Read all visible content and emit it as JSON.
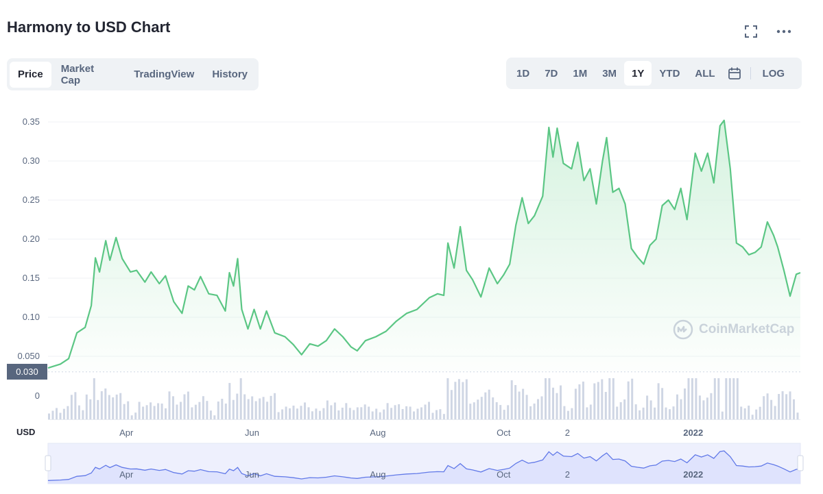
{
  "header": {
    "title": "Harmony to USD Chart",
    "fullscreen_icon": "fullscreen-icon",
    "more_icon": "more-icon"
  },
  "tabs": [
    {
      "label": "Price",
      "active": true
    },
    {
      "label": "Market Cap",
      "active": false
    },
    {
      "label": "TradingView",
      "active": false
    },
    {
      "label": "History",
      "active": false
    }
  ],
  "ranges": [
    {
      "label": "1D",
      "active": false
    },
    {
      "label": "7D",
      "active": false
    },
    {
      "label": "1M",
      "active": false
    },
    {
      "label": "3M",
      "active": false
    },
    {
      "label": "1Y",
      "active": true
    },
    {
      "label": "YTD",
      "active": false
    },
    {
      "label": "ALL",
      "active": false
    }
  ],
  "calendar_icon": "calendar-icon",
  "log_label": "LOG",
  "watermark": "CoinMarketCap",
  "currency_label": "USD",
  "current_price_label": "0.030",
  "colors": {
    "line": "#5bc684",
    "fill": "#d4f2de",
    "volume": "#cfd6e4",
    "navigator_fill": "#dfe3fd",
    "navigator_line": "#6179e8",
    "text_muted": "#58667e"
  },
  "chart_data": {
    "type": "area",
    "ylim": [
      0.03,
      0.36
    ],
    "y_ticks": [
      "0.35",
      "0.30",
      "0.25",
      "0.20",
      "0.15",
      "0.10",
      "0.050"
    ],
    "y_tick_values": [
      0.35,
      0.3,
      0.25,
      0.2,
      0.15,
      0.1,
      0.05
    ],
    "x_ticks": [
      "Apr",
      "Jun",
      "Aug",
      "Oct",
      "2",
      "2022"
    ],
    "x_tick_dates": [
      "2021-04-01",
      "2021-06-01",
      "2021-08-01",
      "2021-10-01",
      "2021-11-01",
      "2022-01-01"
    ],
    "x_range": [
      "2021-02-22",
      "2022-02-22"
    ],
    "volume_axis_label": "0",
    "series": [
      {
        "points": [
          [
            "2021-02-22",
            0.035
          ],
          [
            "2021-02-28",
            0.04
          ],
          [
            "2021-03-04",
            0.047
          ],
          [
            "2021-03-08",
            0.08
          ],
          [
            "2021-03-12",
            0.087
          ],
          [
            "2021-03-15",
            0.115
          ],
          [
            "2021-03-17",
            0.176
          ],
          [
            "2021-03-19",
            0.158
          ],
          [
            "2021-03-22",
            0.198
          ],
          [
            "2021-03-24",
            0.173
          ],
          [
            "2021-03-27",
            0.202
          ],
          [
            "2021-03-30",
            0.175
          ],
          [
            "2021-04-03",
            0.158
          ],
          [
            "2021-04-06",
            0.16
          ],
          [
            "2021-04-10",
            0.145
          ],
          [
            "2021-04-13",
            0.158
          ],
          [
            "2021-04-17",
            0.143
          ],
          [
            "2021-04-20",
            0.153
          ],
          [
            "2021-04-24",
            0.12
          ],
          [
            "2021-04-28",
            0.105
          ],
          [
            "2021-05-01",
            0.14
          ],
          [
            "2021-05-04",
            0.135
          ],
          [
            "2021-05-07",
            0.152
          ],
          [
            "2021-05-11",
            0.13
          ],
          [
            "2021-05-15",
            0.128
          ],
          [
            "2021-05-19",
            0.108
          ],
          [
            "2021-05-21",
            0.157
          ],
          [
            "2021-05-23",
            0.14
          ],
          [
            "2021-05-25",
            0.175
          ],
          [
            "2021-05-27",
            0.11
          ],
          [
            "2021-05-30",
            0.085
          ],
          [
            "2021-06-02",
            0.11
          ],
          [
            "2021-06-05",
            0.085
          ],
          [
            "2021-06-08",
            0.108
          ],
          [
            "2021-06-12",
            0.08
          ],
          [
            "2021-06-17",
            0.075
          ],
          [
            "2021-06-21",
            0.065
          ],
          [
            "2021-06-25",
            0.052
          ],
          [
            "2021-06-29",
            0.066
          ],
          [
            "2021-07-03",
            0.063
          ],
          [
            "2021-07-07",
            0.07
          ],
          [
            "2021-07-11",
            0.085
          ],
          [
            "2021-07-15",
            0.075
          ],
          [
            "2021-07-19",
            0.062
          ],
          [
            "2021-07-22",
            0.057
          ],
          [
            "2021-07-26",
            0.07
          ],
          [
            "2021-07-31",
            0.075
          ],
          [
            "2021-08-05",
            0.082
          ],
          [
            "2021-08-10",
            0.095
          ],
          [
            "2021-08-15",
            0.105
          ],
          [
            "2021-08-20",
            0.11
          ],
          [
            "2021-08-26",
            0.125
          ],
          [
            "2021-08-30",
            0.13
          ],
          [
            "2021-09-02",
            0.128
          ],
          [
            "2021-09-04",
            0.195
          ],
          [
            "2021-09-07",
            0.163
          ],
          [
            "2021-09-10",
            0.216
          ],
          [
            "2021-09-13",
            0.16
          ],
          [
            "2021-09-16",
            0.148
          ],
          [
            "2021-09-20",
            0.126
          ],
          [
            "2021-09-24",
            0.163
          ],
          [
            "2021-09-28",
            0.143
          ],
          [
            "2021-10-01",
            0.154
          ],
          [
            "2021-10-04",
            0.168
          ],
          [
            "2021-10-07",
            0.218
          ],
          [
            "2021-10-10",
            0.253
          ],
          [
            "2021-10-13",
            0.22
          ],
          [
            "2021-10-16",
            0.23
          ],
          [
            "2021-10-20",
            0.255
          ],
          [
            "2021-10-23",
            0.343
          ],
          [
            "2021-10-25",
            0.305
          ],
          [
            "2021-10-27",
            0.342
          ],
          [
            "2021-10-30",
            0.297
          ],
          [
            "2021-11-03",
            0.29
          ],
          [
            "2021-11-06",
            0.324
          ],
          [
            "2021-11-09",
            0.275
          ],
          [
            "2021-11-12",
            0.29
          ],
          [
            "2021-11-15",
            0.245
          ],
          [
            "2021-11-18",
            0.3
          ],
          [
            "2021-11-20",
            0.33
          ],
          [
            "2021-11-23",
            0.26
          ],
          [
            "2021-11-26",
            0.265
          ],
          [
            "2021-11-29",
            0.245
          ],
          [
            "2021-12-02",
            0.188
          ],
          [
            "2021-12-05",
            0.177
          ],
          [
            "2021-12-08",
            0.168
          ],
          [
            "2021-12-11",
            0.192
          ],
          [
            "2021-12-14",
            0.2
          ],
          [
            "2021-12-17",
            0.243
          ],
          [
            "2021-12-20",
            0.25
          ],
          [
            "2021-12-23",
            0.238
          ],
          [
            "2021-12-26",
            0.265
          ],
          [
            "2021-12-29",
            0.225
          ],
          [
            "2022-01-02",
            0.31
          ],
          [
            "2022-01-05",
            0.287
          ],
          [
            "2022-01-08",
            0.31
          ],
          [
            "2022-01-11",
            0.272
          ],
          [
            "2022-01-14",
            0.345
          ],
          [
            "2022-01-16",
            0.352
          ],
          [
            "2022-01-19",
            0.29
          ],
          [
            "2022-01-22",
            0.195
          ],
          [
            "2022-01-25",
            0.19
          ],
          [
            "2022-01-28",
            0.18
          ],
          [
            "2022-01-31",
            0.183
          ],
          [
            "2022-02-03",
            0.19
          ],
          [
            "2022-02-06",
            0.222
          ],
          [
            "2022-02-09",
            0.205
          ],
          [
            "2022-02-11",
            0.19
          ],
          [
            "2022-02-14",
            0.16
          ],
          [
            "2022-02-17",
            0.127
          ],
          [
            "2022-02-20",
            0.155
          ],
          [
            "2022-02-22",
            0.157
          ]
        ]
      }
    ]
  }
}
